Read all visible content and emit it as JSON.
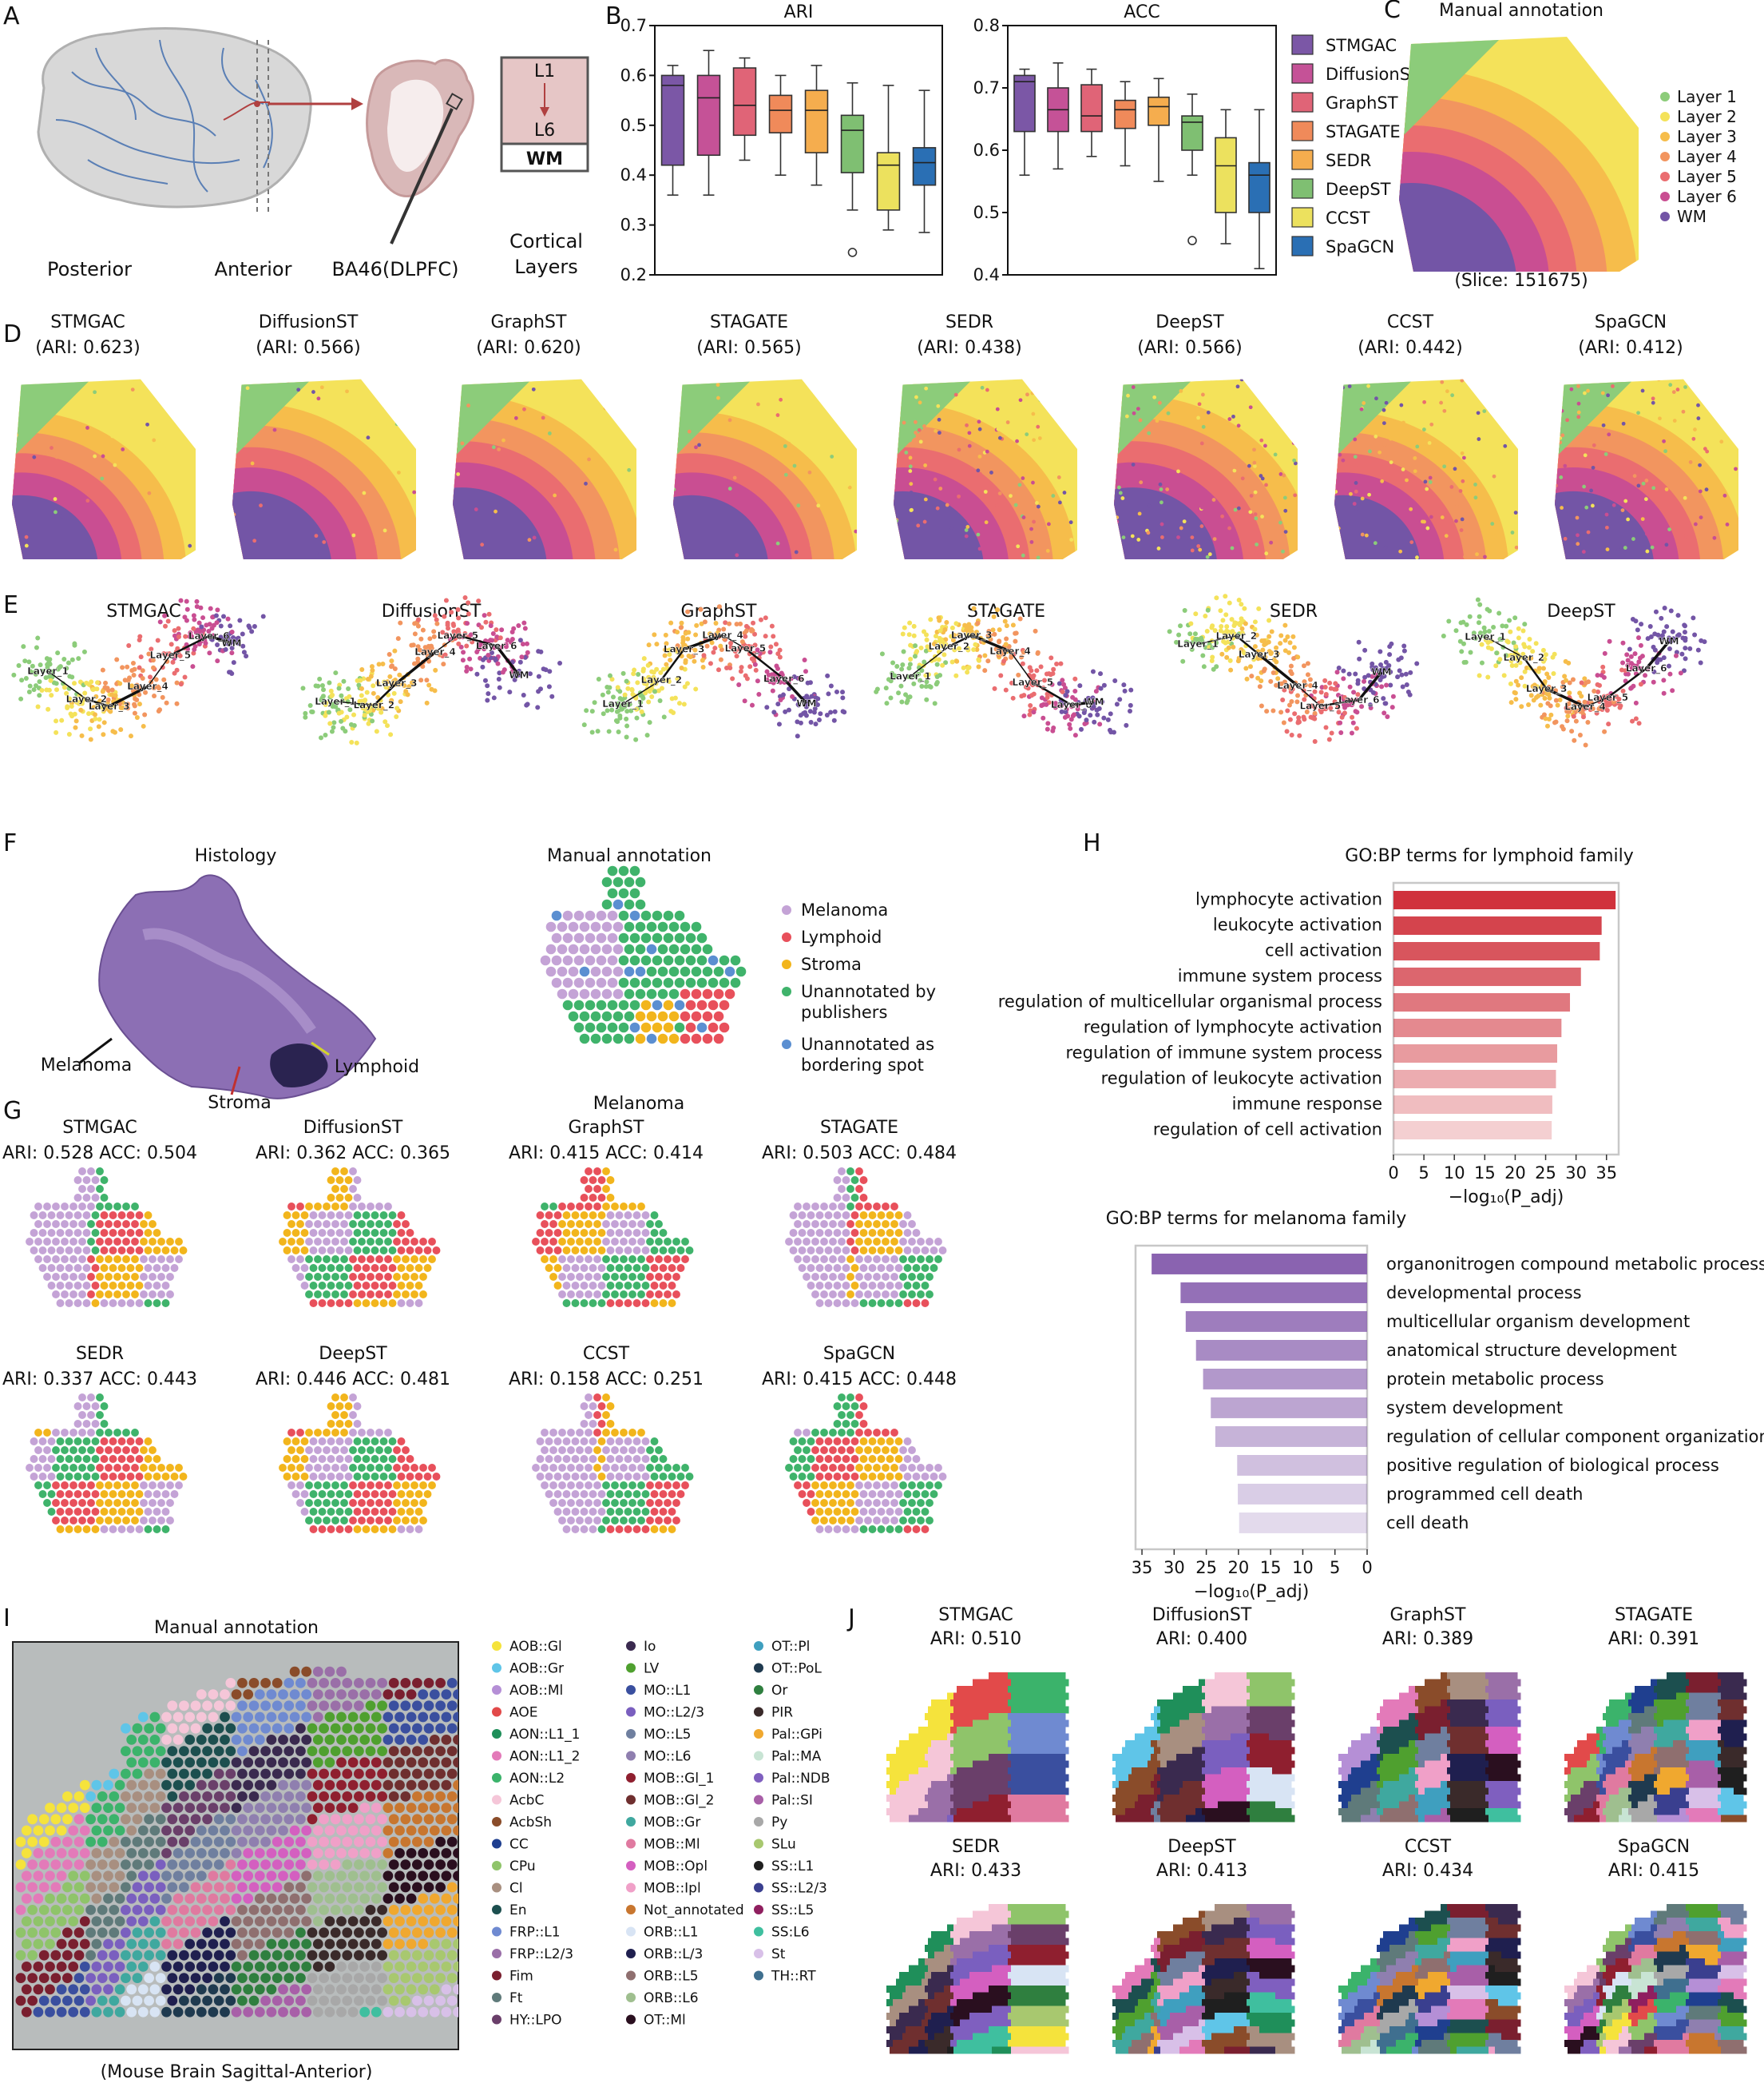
{
  "panel_letters": [
    "A",
    "B",
    "C",
    "D",
    "E",
    "F",
    "G",
    "H",
    "I",
    "J"
  ],
  "panelA": {
    "labels": [
      "Posterior",
      "Anterior",
      "BA46(DLPFC)",
      "Cortical",
      "Layers"
    ],
    "layer_box": [
      "L1",
      "L6",
      "WM"
    ]
  },
  "methods": [
    "STMGAC",
    "DiffusionST",
    "GraphST",
    "STAGATE",
    "SEDR",
    "DeepST",
    "CCST",
    "SpaGCN"
  ],
  "method_colors": [
    "#7b57a6",
    "#c55297",
    "#e06477",
    "#f08a5a",
    "#f5ad4e",
    "#7fbf72",
    "#ece15e",
    "#2a6fb4"
  ],
  "chart_data": [
    {
      "type": "box",
      "title": "ARI",
      "categories": [
        "STMGAC",
        "DiffusionST",
        "GraphST",
        "STAGATE",
        "SEDR",
        "DeepST",
        "CCST",
        "SpaGCN"
      ],
      "ylim": [
        0.2,
        0.7
      ],
      "yticks": [
        "0.2",
        "0.3",
        "0.4",
        "0.5",
        "0.6",
        "0.7"
      ],
      "boxes": [
        {
          "min": 0.36,
          "q1": 0.42,
          "median": 0.58,
          "q3": 0.6,
          "max": 0.62
        },
        {
          "min": 0.36,
          "q1": 0.44,
          "median": 0.555,
          "q3": 0.6,
          "max": 0.65
        },
        {
          "min": 0.43,
          "q1": 0.48,
          "median": 0.54,
          "q3": 0.615,
          "max": 0.635
        },
        {
          "min": 0.4,
          "q1": 0.485,
          "median": 0.53,
          "q3": 0.56,
          "max": 0.6
        },
        {
          "min": 0.38,
          "q1": 0.445,
          "median": 0.53,
          "q3": 0.57,
          "max": 0.62
        },
        {
          "min": 0.33,
          "q1": 0.405,
          "median": 0.49,
          "q3": 0.52,
          "max": 0.585,
          "outliers": [
            0.245
          ]
        },
        {
          "min": 0.29,
          "q1": 0.33,
          "median": 0.42,
          "q3": 0.445,
          "max": 0.58
        },
        {
          "min": 0.285,
          "q1": 0.38,
          "median": 0.425,
          "q3": 0.455,
          "max": 0.57
        }
      ]
    },
    {
      "type": "box",
      "title": "ACC",
      "categories": [
        "STMGAC",
        "DiffusionST",
        "GraphST",
        "STAGATE",
        "SEDR",
        "DeepST",
        "CCST",
        "SpaGCN"
      ],
      "ylim": [
        0.4,
        0.8
      ],
      "yticks": [
        "0.4",
        "0.5",
        "0.6",
        "0.7",
        "0.8"
      ],
      "boxes": [
        {
          "min": 0.56,
          "q1": 0.63,
          "median": 0.71,
          "q3": 0.72,
          "max": 0.73
        },
        {
          "min": 0.57,
          "q1": 0.63,
          "median": 0.665,
          "q3": 0.7,
          "max": 0.74
        },
        {
          "min": 0.59,
          "q1": 0.63,
          "median": 0.655,
          "q3": 0.705,
          "max": 0.73
        },
        {
          "min": 0.575,
          "q1": 0.635,
          "median": 0.665,
          "q3": 0.68,
          "max": 0.71
        },
        {
          "min": 0.55,
          "q1": 0.64,
          "median": 0.67,
          "q3": 0.685,
          "max": 0.715
        },
        {
          "min": 0.56,
          "q1": 0.6,
          "median": 0.645,
          "q3": 0.655,
          "max": 0.69,
          "outliers": [
            0.455
          ]
        },
        {
          "min": 0.45,
          "q1": 0.5,
          "median": 0.575,
          "q3": 0.62,
          "max": 0.665
        },
        {
          "min": 0.41,
          "q1": 0.5,
          "median": 0.56,
          "q3": 0.58,
          "max": 0.665
        }
      ]
    },
    {
      "type": "bar",
      "orientation": "horizontal",
      "title": "GO:BP terms for lymphoid family",
      "xlabel": "−log₁₀(P_adj)",
      "xlim": [
        0,
        37
      ],
      "xticks": [
        "0",
        "5",
        "10",
        "15",
        "20",
        "25",
        "30",
        "35"
      ],
      "categories": [
        "lymphocyte activation",
        "leukocyte activation",
        "cell activation",
        "immune system process",
        "regulation of multicellular organismal process",
        "regulation of lymphocyte activation",
        "regulation of immune system process",
        "regulation of leukocyte activation",
        "immune response",
        "regulation of cell activation"
      ],
      "values": [
        36.5,
        34.2,
        33.9,
        30.8,
        29.0,
        27.6,
        26.9,
        26.7,
        26.1,
        26.0
      ]
    },
    {
      "type": "bar",
      "orientation": "horizontal",
      "title": "GO:BP terms for melanoma family",
      "xlabel": "−log₁₀(P_adj)",
      "xlim": [
        36,
        0
      ],
      "xticks": [
        "35",
        "30",
        "25",
        "20",
        "15",
        "10",
        "5",
        "0"
      ],
      "categories": [
        "organonitrogen compound metabolic process",
        "developmental process",
        "multicellular organism development",
        "anatomical structure development",
        "protein metabolic process",
        "system development",
        "regulation of cellular component organization",
        "positive regulation of biological process",
        "programmed cell death",
        "cell death"
      ],
      "values": [
        33.5,
        29.0,
        28.2,
        26.6,
        25.5,
        24.3,
        23.6,
        20.2,
        20.1,
        19.9
      ]
    }
  ],
  "panelC": {
    "title": "Manual annotation",
    "caption": "(Slice: 151675)",
    "legend": [
      "Layer 1",
      "Layer 2",
      "Layer 3",
      "Layer 4",
      "Layer 5",
      "Layer 6",
      "WM"
    ],
    "colors": [
      "#8ccc7a",
      "#f4e25a",
      "#f6bd4b",
      "#f2955f",
      "#ea6d70",
      "#c94e92",
      "#7355a6"
    ]
  },
  "panelD": [
    {
      "name": "STMGAC",
      "ari": "(ARI: 0.623)"
    },
    {
      "name": "DiffusionST",
      "ari": "(ARI: 0.566)"
    },
    {
      "name": "GraphST",
      "ari": "(ARI: 0.620)"
    },
    {
      "name": "STAGATE",
      "ari": "(ARI: 0.565)"
    },
    {
      "name": "SEDR",
      "ari": "(ARI: 0.438)"
    },
    {
      "name": "DeepST",
      "ari": "(ARI: 0.566)"
    },
    {
      "name": "CCST",
      "ari": "(ARI: 0.442)"
    },
    {
      "name": "SpaGCN",
      "ari": "(ARI: 0.412)"
    }
  ],
  "panelE": {
    "titles": [
      "STMGAC",
      "DiffusionST",
      "GraphST",
      "STAGATE",
      "SEDR",
      "DeepST"
    ],
    "node_labels": [
      "Layer_1",
      "Layer_2",
      "Layer_3",
      "Layer_4",
      "Layer_5",
      "Layer_6",
      "WM"
    ]
  },
  "panelF": {
    "histology_title": "Histology",
    "histology_labels": [
      "Melanoma",
      "Stroma",
      "Lymphoid"
    ],
    "annotation_title": "Manual annotation",
    "annotation_caption": "Melanoma",
    "legend": [
      {
        "label": [
          "Melanoma"
        ],
        "color": "#c4a3d6"
      },
      {
        "label": [
          "Lymphoid"
        ],
        "color": "#e8505b"
      },
      {
        "label": [
          "Stroma"
        ],
        "color": "#f2b51c"
      },
      {
        "label": [
          "Unannotated by",
          "publishers"
        ],
        "color": "#3fb36b"
      },
      {
        "label": [
          "Unannotated as",
          "bordering spot"
        ],
        "color": "#5b8fd1"
      }
    ]
  },
  "panelG": [
    {
      "name": "STMGAC",
      "score": "ARI: 0.528 ACC: 0.504"
    },
    {
      "name": "DiffusionST",
      "score": "ARI: 0.362 ACC: 0.365"
    },
    {
      "name": "GraphST",
      "score": "ARI: 0.415 ACC: 0.414"
    },
    {
      "name": "STAGATE",
      "score": "ARI: 0.503 ACC: 0.484"
    },
    {
      "name": "SEDR",
      "score": "ARI: 0.337 ACC: 0.443"
    },
    {
      "name": "DeepST",
      "score": "ARI: 0.446 ACC: 0.481"
    },
    {
      "name": "CCST",
      "score": "ARI: 0.158 ACC: 0.251"
    },
    {
      "name": "SpaGCN",
      "score": "ARI: 0.415 ACC: 0.448"
    }
  ],
  "panelI": {
    "title": "Manual annotation",
    "caption": "(Mouse Brain Sagittal-Anterior)",
    "legend": [
      {
        "label": "AOB::Gl",
        "color": "#f5e33c"
      },
      {
        "label": "AOB::Gr",
        "color": "#5fc5e8"
      },
      {
        "label": "AOB::Ml",
        "color": "#b58fd6"
      },
      {
        "label": "AOE",
        "color": "#e24a4a"
      },
      {
        "label": "AON::L1_1",
        "color": "#1f8f5a"
      },
      {
        "label": "AON::L1_2",
        "color": "#e37ab9"
      },
      {
        "label": "AON::L2",
        "color": "#3bb36b"
      },
      {
        "label": "AcbC",
        "color": "#f5c6d8"
      },
      {
        "label": "AcbSh",
        "color": "#8a4c2a"
      },
      {
        "label": "CC",
        "color": "#1f3f8f"
      },
      {
        "label": "CPu",
        "color": "#8fc46a"
      },
      {
        "label": "Cl",
        "color": "#a88f80"
      },
      {
        "label": "En",
        "color": "#1c4f4f"
      },
      {
        "label": "FRP::L1",
        "color": "#6f8ad1"
      },
      {
        "label": "FRP::L2/3",
        "color": "#9a6fa8"
      },
      {
        "label": "Fim",
        "color": "#7a1f2f"
      },
      {
        "label": "Ft",
        "color": "#5f7a7a"
      },
      {
        "label": "HY::LPO",
        "color": "#6a3f6a"
      },
      {
        "label": "Io",
        "color": "#3a2a4f"
      },
      {
        "label": "LV",
        "color": "#4fa02f"
      },
      {
        "label": "MO::L1",
        "color": "#3a4f9f"
      },
      {
        "label": "MO::L2/3",
        "color": "#7a5fbf"
      },
      {
        "label": "MO::L5",
        "color": "#6f7f9f"
      },
      {
        "label": "MO::L6",
        "color": "#8f7faf"
      },
      {
        "label": "MOB::Gl_1",
        "color": "#8f1f2f"
      },
      {
        "label": "MOB::Gl_2",
        "color": "#6f2f2f"
      },
      {
        "label": "MOB::Gr",
        "color": "#3fa89f"
      },
      {
        "label": "MOB::Ml",
        "color": "#e07aa0"
      },
      {
        "label": "MOB::Opl",
        "color": "#d45fc0"
      },
      {
        "label": "MOB::Ipl",
        "color": "#f0a0c8"
      },
      {
        "label": "Not_annotated",
        "color": "#c8762f"
      },
      {
        "label": "ORB::L1",
        "color": "#d8e4f4"
      },
      {
        "label": "ORB::L/3",
        "color": "#1f1f4f"
      },
      {
        "label": "ORB::L5",
        "color": "#8f6f6f"
      },
      {
        "label": "ORB::L6",
        "color": "#9fbf8f"
      },
      {
        "label": "OT::Ml",
        "color": "#2a0f1f"
      },
      {
        "label": "OT::Pl",
        "color": "#3f9fbf"
      },
      {
        "label": "OT::PoL",
        "color": "#1f3a4f"
      },
      {
        "label": "Or",
        "color": "#2f7f3f"
      },
      {
        "label": "PIR",
        "color": "#3a2a2a"
      },
      {
        "label": "Pal::GPi",
        "color": "#f0a82f"
      },
      {
        "label": "Pal::MA",
        "color": "#c8e4d4"
      },
      {
        "label": "Pal::NDB",
        "color": "#7f5fbf"
      },
      {
        "label": "Pal::SI",
        "color": "#a85fa8"
      },
      {
        "label": "Py",
        "color": "#a8a8a8"
      },
      {
        "label": "SLu",
        "color": "#a8c86f"
      },
      {
        "label": "SS::L1",
        "color": "#1f1f1f"
      },
      {
        "label": "SS::L2/3",
        "color": "#3a3f8f"
      },
      {
        "label": "SS::L5",
        "color": "#8f1f5f"
      },
      {
        "label": "SS:L6",
        "color": "#3fbf9f"
      },
      {
        "label": "St",
        "color": "#d8c0e8"
      },
      {
        "label": "TH::RT",
        "color": "#3f6f8f"
      }
    ]
  },
  "panelJ": [
    {
      "name": "STMGAC",
      "ari": "ARI: 0.510"
    },
    {
      "name": "DiffusionST",
      "ari": "ARI: 0.400"
    },
    {
      "name": "GraphST",
      "ari": "ARI: 0.389"
    },
    {
      "name": "STAGATE",
      "ari": "ARI: 0.391"
    },
    {
      "name": "SEDR",
      "ari": "ARI: 0.433"
    },
    {
      "name": "DeepST",
      "ari": "ARI: 0.413"
    },
    {
      "name": "CCST",
      "ari": "ARI: 0.434"
    },
    {
      "name": "SpaGCN",
      "ari": "ARI: 0.415"
    }
  ]
}
